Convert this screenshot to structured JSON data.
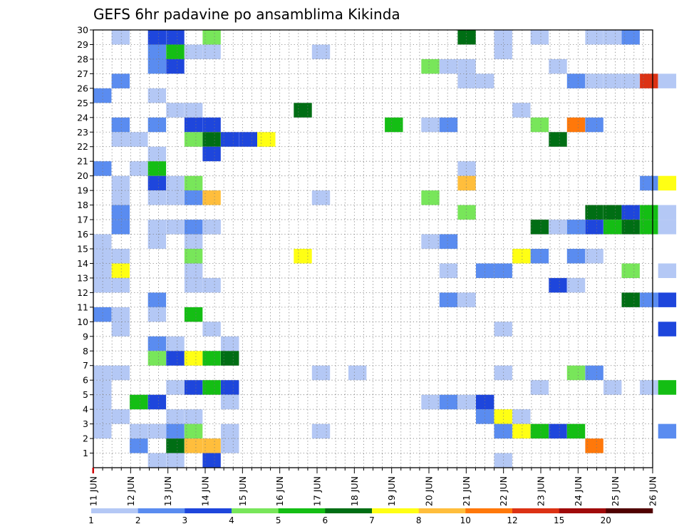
{
  "chart_data": {
    "type": "heatmap",
    "title": "GEFS 6hr padavine po ansamblima Kikinda",
    "xlabel": "",
    "ylabel": "",
    "x_tick_labels": [
      "11 JUN",
      "12 JUN",
      "13 JUN",
      "14 JUN",
      "15 JUN",
      "16 JUN",
      "17 JUN",
      "18 JUN",
      "19 JUN",
      "20 JUN",
      "21 JUN",
      "22 JUN",
      "23 JUN",
      "24 JUN",
      "25 JUN",
      "26 JUN"
    ],
    "xlim_steps": [
      0,
      60
    ],
    "steps_per_day": 4,
    "y_tick_labels": [
      "1",
      "2",
      "3",
      "4",
      "5",
      "6",
      "7",
      "8",
      "9",
      "10",
      "11",
      "12",
      "13",
      "14",
      "15",
      "16",
      "17",
      "18",
      "19",
      "20",
      "21",
      "22",
      "23",
      "24",
      "25",
      "26",
      "27",
      "28",
      "29",
      "30"
    ],
    "ylim": [
      0,
      30
    ],
    "grid": true,
    "colorbar": {
      "placement": "bottom",
      "labels": [
        "1",
        "2",
        "3",
        "4",
        "5",
        "6",
        "7",
        "8",
        "10",
        "12",
        "15",
        "20"
      ],
      "colors": [
        "#b4c8f5",
        "#5a8cf0",
        "#1e46dc",
        "#78e65a",
        "#14be14",
        "#006e14",
        "#ffff14",
        "#ffbe3c",
        "#ff780a",
        "#dc3214",
        "#a00a0a",
        "#500000"
      ]
    },
    "cells": [
      [
        1,
        30,
        1
      ],
      [
        3,
        30,
        3
      ],
      [
        4,
        30,
        3
      ],
      [
        6,
        30,
        4
      ],
      [
        20,
        30,
        6
      ],
      [
        22,
        30,
        1
      ],
      [
        24,
        30,
        1
      ],
      [
        27,
        30,
        1
      ],
      [
        28,
        30,
        1
      ],
      [
        29,
        30,
        2
      ],
      [
        3,
        29,
        2
      ],
      [
        4,
        29,
        5
      ],
      [
        5,
        29,
        1
      ],
      [
        6,
        29,
        1
      ],
      [
        12,
        29,
        1
      ],
      [
        22,
        29,
        1
      ],
      [
        3,
        28,
        2
      ],
      [
        4,
        28,
        3
      ],
      [
        18,
        28,
        4
      ],
      [
        19,
        28,
        1
      ],
      [
        20,
        28,
        1
      ],
      [
        25,
        28,
        1
      ],
      [
        1,
        27,
        2
      ],
      [
        20,
        27,
        1
      ],
      [
        21,
        27,
        1
      ],
      [
        26,
        27,
        2
      ],
      [
        27,
        27,
        1
      ],
      [
        28,
        27,
        1
      ],
      [
        29,
        27,
        1
      ],
      [
        30,
        27,
        10
      ],
      [
        31,
        27,
        1
      ],
      [
        0,
        26,
        2
      ],
      [
        3,
        26,
        1
      ],
      [
        4,
        25,
        1
      ],
      [
        5,
        25,
        1
      ],
      [
        11,
        25,
        6
      ],
      [
        23,
        25,
        1
      ],
      [
        1,
        24,
        2
      ],
      [
        3,
        24,
        2
      ],
      [
        5,
        24,
        3
      ],
      [
        6,
        24,
        3
      ],
      [
        16,
        24,
        5
      ],
      [
        18,
        24,
        1
      ],
      [
        19,
        24,
        2
      ],
      [
        24,
        24,
        4
      ],
      [
        26,
        24,
        9
      ],
      [
        27,
        24,
        2
      ],
      [
        1,
        23,
        1
      ],
      [
        2,
        23,
        1
      ],
      [
        5,
        23,
        4
      ],
      [
        6,
        23,
        6
      ],
      [
        7,
        23,
        3
      ],
      [
        8,
        23,
        3
      ],
      [
        9,
        23,
        7
      ],
      [
        25,
        23,
        6
      ],
      [
        3,
        22,
        1
      ],
      [
        6,
        22,
        3
      ],
      [
        0,
        21,
        2
      ],
      [
        2,
        21,
        1
      ],
      [
        3,
        21,
        5
      ],
      [
        20,
        21,
        1
      ],
      [
        1,
        20,
        1
      ],
      [
        3,
        20,
        3
      ],
      [
        4,
        20,
        1
      ],
      [
        5,
        20,
        4
      ],
      [
        20,
        20,
        8
      ],
      [
        30,
        20,
        2
      ],
      [
        31,
        20,
        7
      ],
      [
        1,
        19,
        1
      ],
      [
        3,
        19,
        1
      ],
      [
        4,
        19,
        1
      ],
      [
        5,
        19,
        2
      ],
      [
        6,
        19,
        8
      ],
      [
        12,
        19,
        1
      ],
      [
        18,
        19,
        4
      ],
      [
        1,
        18,
        2
      ],
      [
        20,
        18,
        4
      ],
      [
        27,
        18,
        6
      ],
      [
        28,
        18,
        6
      ],
      [
        29,
        18,
        3
      ],
      [
        30,
        18,
        5
      ],
      [
        31,
        18,
        1
      ],
      [
        1,
        17,
        2
      ],
      [
        3,
        17,
        1
      ],
      [
        4,
        17,
        1
      ],
      [
        5,
        17,
        2
      ],
      [
        6,
        17,
        1
      ],
      [
        6,
        17,
        1
      ],
      [
        24,
        17,
        6
      ],
      [
        25,
        17,
        1
      ],
      [
        26,
        17,
        2
      ],
      [
        27,
        17,
        3
      ],
      [
        28,
        17,
        5
      ],
      [
        29,
        17,
        6
      ],
      [
        30,
        17,
        5
      ],
      [
        31,
        17,
        1
      ],
      [
        0,
        16,
        1
      ],
      [
        3,
        16,
        1
      ],
      [
        5,
        16,
        1
      ],
      [
        18,
        16,
        1
      ],
      [
        19,
        16,
        2
      ],
      [
        0,
        15,
        1
      ],
      [
        1,
        15,
        1
      ],
      [
        5,
        15,
        4
      ],
      [
        11,
        15,
        7
      ],
      [
        23,
        15,
        7
      ],
      [
        24,
        15,
        2
      ],
      [
        26,
        15,
        2
      ],
      [
        27,
        15,
        1
      ],
      [
        0,
        14,
        1
      ],
      [
        1,
        14,
        7
      ],
      [
        5,
        14,
        1
      ],
      [
        19,
        14,
        1
      ],
      [
        21,
        14,
        2
      ],
      [
        22,
        14,
        2
      ],
      [
        29,
        14,
        4
      ],
      [
        31,
        14,
        1
      ],
      [
        0,
        13,
        1
      ],
      [
        1,
        13,
        1
      ],
      [
        5,
        13,
        1
      ],
      [
        6,
        13,
        1
      ],
      [
        25,
        13,
        3
      ],
      [
        26,
        13,
        1
      ],
      [
        3,
        12,
        2
      ],
      [
        19,
        12,
        2
      ],
      [
        20,
        12,
        1
      ],
      [
        29,
        12,
        6
      ],
      [
        30,
        12,
        2
      ],
      [
        31,
        12,
        3
      ],
      [
        0,
        11,
        2
      ],
      [
        1,
        11,
        1
      ],
      [
        3,
        11,
        1
      ],
      [
        5,
        11,
        5
      ],
      [
        1,
        10,
        1
      ],
      [
        6,
        10,
        1
      ],
      [
        22,
        10,
        1
      ],
      [
        31,
        10,
        3
      ],
      [
        3,
        9,
        2
      ],
      [
        4,
        9,
        1
      ],
      [
        7,
        9,
        1
      ],
      [
        3,
        8,
        4
      ],
      [
        4,
        8,
        3
      ],
      [
        5,
        8,
        7
      ],
      [
        6,
        8,
        5
      ],
      [
        7,
        8,
        6
      ],
      [
        0,
        7,
        1
      ],
      [
        1,
        7,
        1
      ],
      [
        12,
        7,
        1
      ],
      [
        14,
        7,
        1
      ],
      [
        22,
        7,
        1
      ],
      [
        26,
        7,
        4
      ],
      [
        27,
        7,
        2
      ],
      [
        0,
        6,
        1
      ],
      [
        4,
        6,
        1
      ],
      [
        5,
        6,
        3
      ],
      [
        6,
        6,
        5
      ],
      [
        7,
        6,
        3
      ],
      [
        24,
        6,
        1
      ],
      [
        28,
        6,
        1
      ],
      [
        30,
        6,
        1
      ],
      [
        31,
        6,
        5
      ],
      [
        0,
        5,
        1
      ],
      [
        2,
        5,
        5
      ],
      [
        3,
        5,
        3
      ],
      [
        7,
        5,
        1
      ],
      [
        18,
        5,
        1
      ],
      [
        19,
        5,
        2
      ],
      [
        20,
        5,
        1
      ],
      [
        21,
        5,
        3
      ],
      [
        0,
        4,
        1
      ],
      [
        1,
        4,
        1
      ],
      [
        4,
        4,
        1
      ],
      [
        5,
        4,
        1
      ],
      [
        21,
        4,
        2
      ],
      [
        22,
        4,
        7
      ],
      [
        23,
        4,
        1
      ],
      [
        0,
        3,
        1
      ],
      [
        2,
        3,
        1
      ],
      [
        3,
        3,
        1
      ],
      [
        4,
        3,
        2
      ],
      [
        5,
        3,
        4
      ],
      [
        7,
        3,
        1
      ],
      [
        12,
        3,
        1
      ],
      [
        22,
        3,
        2
      ],
      [
        23,
        3,
        7
      ],
      [
        24,
        3,
        5
      ],
      [
        25,
        3,
        3
      ],
      [
        26,
        3,
        5
      ],
      [
        31,
        3,
        2
      ],
      [
        2,
        2,
        2
      ],
      [
        4,
        2,
        6
      ],
      [
        5,
        2,
        8
      ],
      [
        6,
        2,
        8
      ],
      [
        7,
        2,
        1
      ],
      [
        27,
        2,
        9
      ],
      [
        3,
        1,
        1
      ],
      [
        4,
        1,
        1
      ],
      [
        6,
        1,
        3
      ],
      [
        22,
        1,
        1
      ]
    ]
  }
}
